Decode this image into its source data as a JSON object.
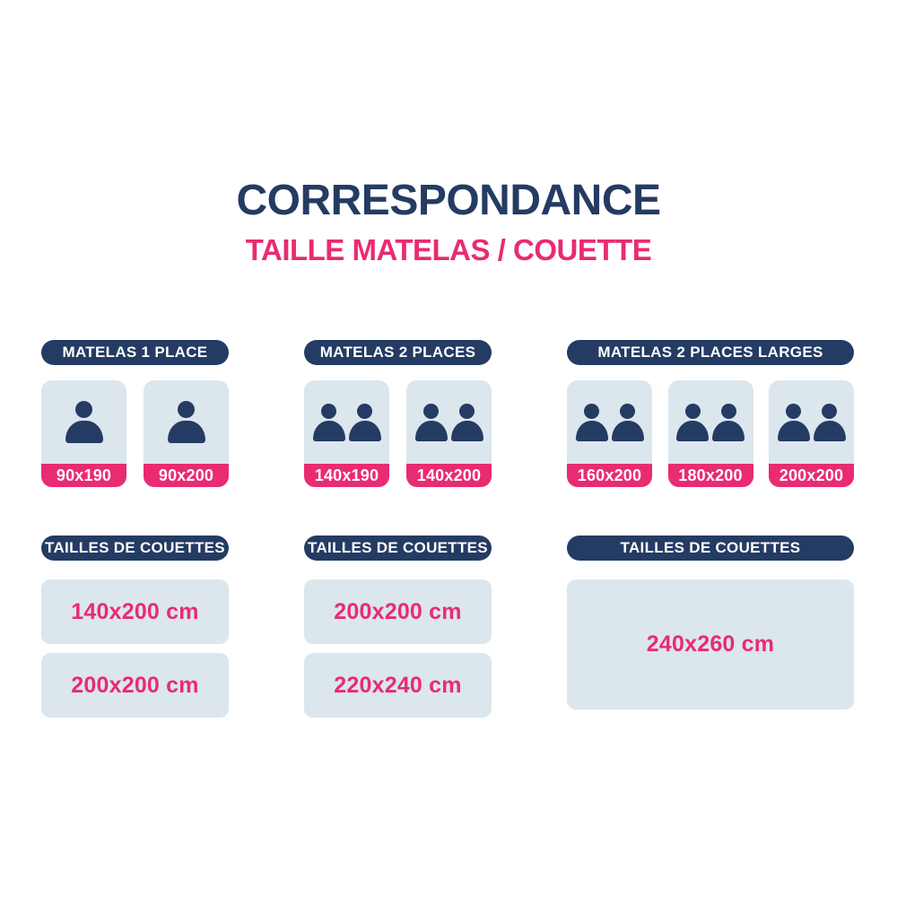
{
  "title": "CORRESPONDANCE",
  "subtitle": "TAILLE MATELAS / COUETTE",
  "colors": {
    "navy": "#243b63",
    "pink": "#e92b72",
    "card_background": "#dce6ed",
    "page_background": "#ffffff"
  },
  "columns": [
    {
      "header": "MATELAS 1 PLACE",
      "persons_per_mattress": 1,
      "mattresses": [
        "90x190",
        "90x200"
      ],
      "couette_header": "TAILLES DE COUETTES",
      "couettes": [
        "140x200 cm",
        "200x200 cm"
      ]
    },
    {
      "header": "MATELAS 2 PLACES",
      "persons_per_mattress": 2,
      "mattresses": [
        "140x190",
        "140x200"
      ],
      "couette_header": "TAILLES DE COUETTES",
      "couettes": [
        "200x200 cm",
        "220x240 cm"
      ]
    },
    {
      "header": "MATELAS 2 PLACES LARGES",
      "persons_per_mattress": 2,
      "mattresses": [
        "160x200",
        "180x200",
        "200x200"
      ],
      "couette_header": "TAILLES DE COUETTES",
      "couettes": [
        "240x260 cm"
      ]
    }
  ]
}
